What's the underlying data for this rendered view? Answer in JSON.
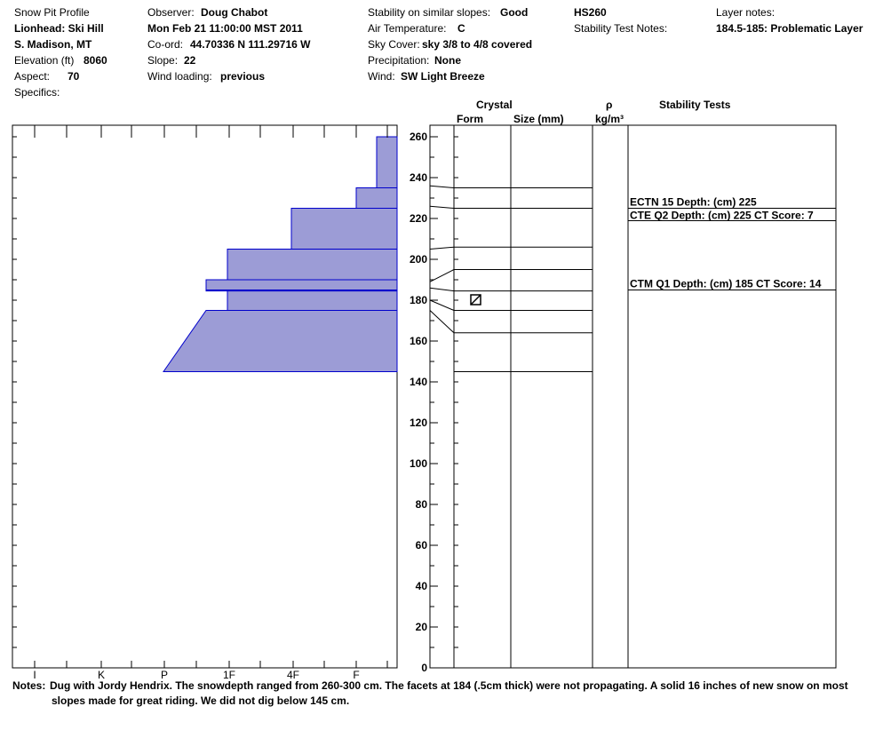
{
  "header": {
    "profile_title": "Snow Pit Profile",
    "location": "Lionhead: Ski Hill",
    "region": "S. Madison, MT",
    "elevation_label": "Elevation (ft)",
    "elevation_value": "8060",
    "aspect_label": "Aspect:",
    "aspect_value": "70",
    "specifics_label": "Specifics:",
    "observer_label": "Observer:",
    "observer_value": "Doug Chabot",
    "date_value": "Mon Feb 21 11:00:00 MST 2011",
    "coord_label": "Co-ord:",
    "coord_value": "44.70336 N 111.29716 W",
    "slope_label": "Slope:",
    "slope_value": "22",
    "wind_loading_label": "Wind loading:",
    "wind_loading_value": "previous",
    "stability_label": "Stability on similar slopes:",
    "stability_value": "Good",
    "air_temp_label": "Air Temperature:",
    "air_temp_value": "C",
    "sky_label": "Sky Cover:",
    "sky_value": "sky 3/8 to 4/8 covered",
    "precip_label": "Precipitation:",
    "precip_value": "None",
    "wind_label": "Wind:",
    "wind_value": "SW Light Breeze",
    "hs_value": "HS260",
    "stability_notes_label": "Stability Test Notes:",
    "layer_notes_label": "Layer notes:",
    "layer_notes_value": "184.5-185: Problematic Layer"
  },
  "columns": {
    "crystal": "Crystal",
    "form": "Form",
    "size": "Size (mm)",
    "rho": "ρ",
    "density_unit": "kg/m³",
    "stability_tests": "Stability Tests"
  },
  "notes": {
    "label": "Notes:",
    "line1": "Dug with Jordy Hendrix.  The snowdepth ranged from 260-300 cm.  The facets at 184 (.5cm thick) were not propagating. A solid 16 inches of new snow on most",
    "line2": "slopes made for great riding.  We did not dig below 145 cm."
  },
  "chart_data": {
    "type": "area",
    "title": "",
    "ylabel": "",
    "ylim": [
      0,
      265
    ],
    "y_ticks": [
      0,
      20,
      40,
      60,
      80,
      100,
      120,
      140,
      160,
      180,
      200,
      220,
      240,
      260
    ],
    "hardness_scale": [
      "I",
      "K",
      "P",
      "1F",
      "4F",
      "F"
    ],
    "hardness_profile": [
      {
        "top": 260,
        "bottom": 235,
        "hardness": "4F-/F+"
      },
      {
        "top": 235,
        "bottom": 225,
        "hardness": "F"
      },
      {
        "top": 225,
        "bottom": 205,
        "hardness": "4F"
      },
      {
        "top": 205,
        "bottom": 190,
        "hardness": "1F"
      },
      {
        "top": 190,
        "bottom": 185,
        "hardness": "P+"
      },
      {
        "top": 185,
        "bottom": 184.5,
        "hardness": "P+"
      },
      {
        "top": 184.5,
        "bottom": 175,
        "hardness": "1F"
      },
      {
        "top": 175,
        "bottom": 145,
        "hardness_top": "P+",
        "hardness_bottom": "K+"
      }
    ],
    "layer_boundaries": [
      235,
      225,
      206,
      195,
      184.5,
      175,
      164,
      145
    ],
    "crystal_form_marker_depth": 180,
    "crystal_form_symbol": "⧄",
    "stability_tests": [
      {
        "text": "ECTN 15   Depth: (cm) 225",
        "depth": 225
      },
      {
        "text": "CTE Q2 Depth: (cm) 225 CT Score: 7",
        "depth": 225
      },
      {
        "text": "CTM Q1 Depth: (cm) 185 CT Score: 14",
        "depth": 185
      }
    ],
    "colors": {
      "fill": "#9c9cd6",
      "stroke": "#0000cc"
    }
  }
}
